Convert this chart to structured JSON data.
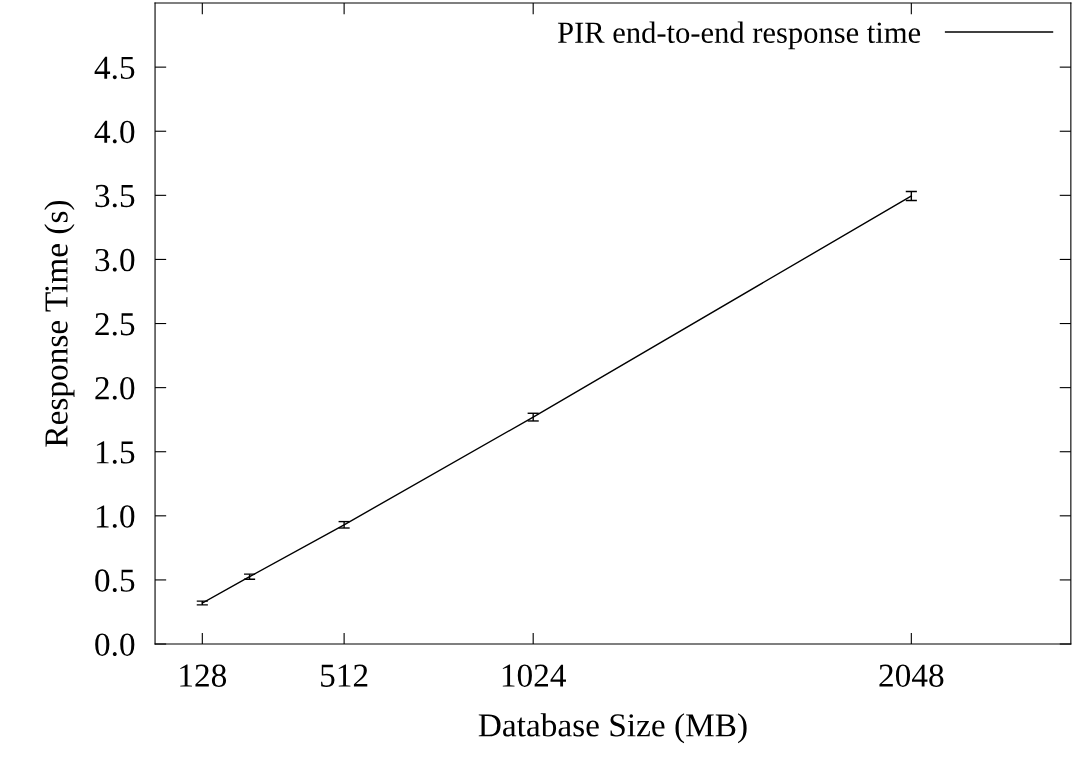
{
  "chart_data": {
    "type": "line",
    "xlabel": "Database Size (MB)",
    "ylabel": "Response Time (s)",
    "x": [
      128,
      256,
      512,
      1024,
      2048
    ],
    "series": [
      {
        "name": "PIR end-to-end response time",
        "color": "#000000",
        "values": [
          0.32,
          0.525,
          0.93,
          1.77,
          3.495
        ],
        "errors": [
          0.015,
          0.02,
          0.025,
          0.03,
          0.035
        ]
      }
    ],
    "xlim": [
      0,
      2480
    ],
    "xticks": [
      128,
      512,
      1024,
      2048
    ],
    "ylim": [
      0,
      5
    ],
    "yticks": [
      {
        "value": 0,
        "label": "0.0"
      },
      0.5,
      {
        "value": 1,
        "label": "1.0"
      },
      1.5,
      {
        "value": 2,
        "label": "2.0"
      },
      2.5,
      {
        "value": 3,
        "label": "3.0"
      },
      3.5,
      {
        "value": 4,
        "label": "4.0"
      },
      4.5
    ],
    "grid": false,
    "legend": "top right",
    "marker": "none",
    "line_style": "solid"
  }
}
